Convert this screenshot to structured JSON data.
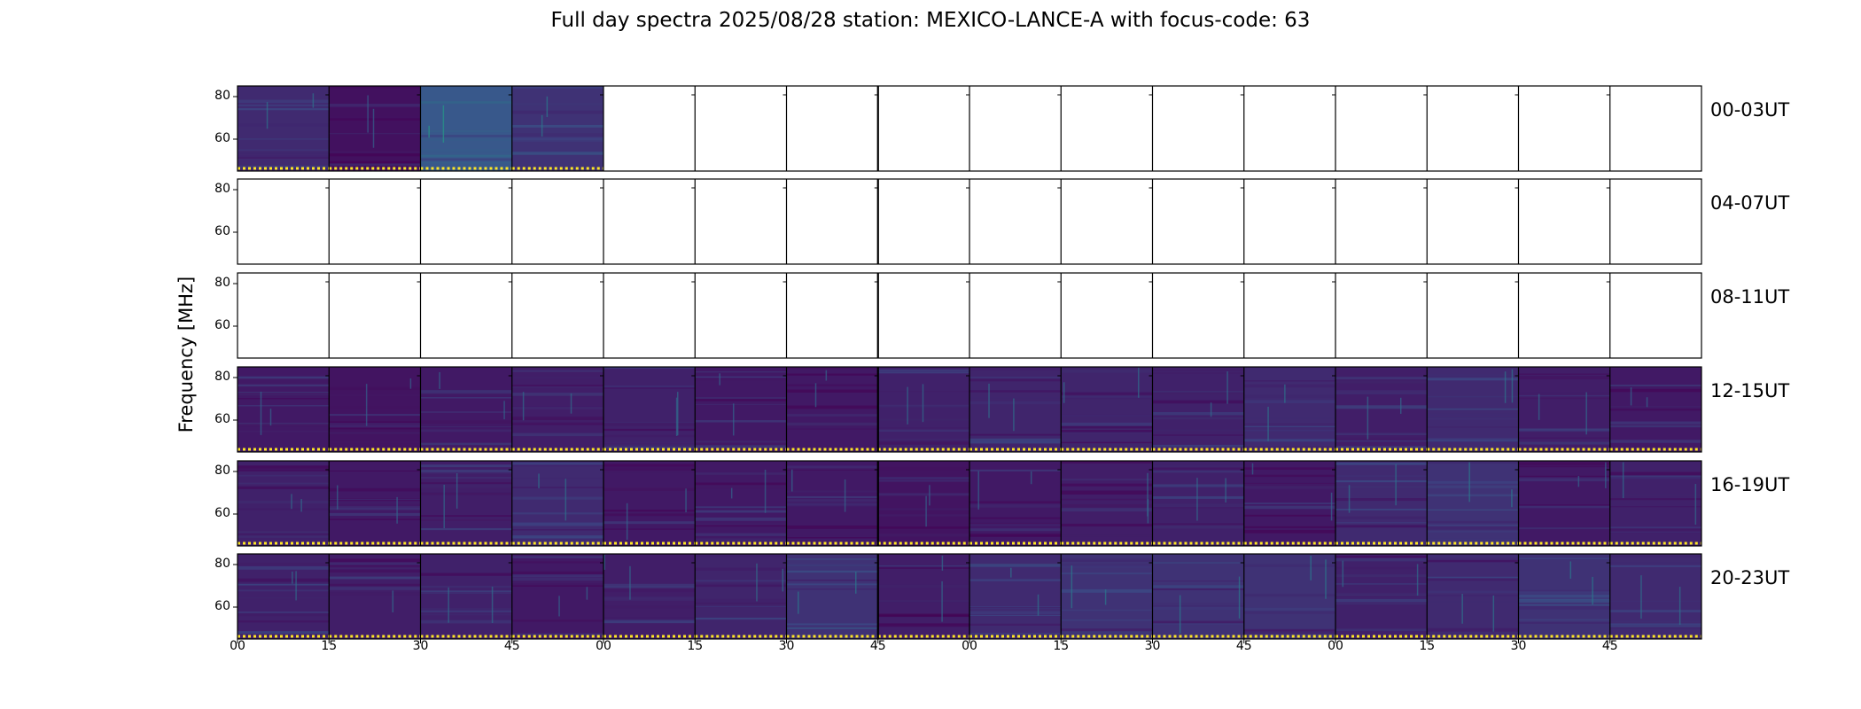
{
  "chart_data": {
    "type": "heatmap",
    "title": "Full day spectra 2025/08/28 station: MEXICO-LANCE-A with focus-code: 63",
    "ylabel": "Frequency [MHz]",
    "yticks": [
      "80",
      "60"
    ],
    "ylim": [
      45,
      85
    ],
    "xticks": [
      "00",
      "15",
      "30",
      "45",
      "00",
      "15",
      "30",
      "45",
      "00",
      "15",
      "30",
      "45",
      "00",
      "15",
      "30",
      "45"
    ],
    "colormap": "viridis",
    "colors": {
      "low": "#440154",
      "mid": "#3b528b",
      "teal": "#21918c",
      "high": "#fde725"
    },
    "rows": [
      {
        "label": "00-03UT",
        "panels_with_data": [
          1,
          1,
          1,
          1,
          0,
          0,
          0,
          0,
          0,
          0,
          0,
          0,
          0,
          0,
          0,
          0
        ],
        "panel_brightness": [
          0.25,
          0.1,
          0.55,
          0.3,
          0,
          0,
          0,
          0,
          0,
          0,
          0,
          0,
          0,
          0,
          0,
          0
        ]
      },
      {
        "label": "04-07UT",
        "panels_with_data": [
          0,
          0,
          0,
          0,
          0,
          0,
          0,
          0,
          0,
          0,
          0,
          0,
          0,
          0,
          0,
          0
        ],
        "panel_brightness": [
          0,
          0,
          0,
          0,
          0,
          0,
          0,
          0,
          0,
          0,
          0,
          0,
          0,
          0,
          0,
          0
        ]
      },
      {
        "label": "08-11UT",
        "panels_with_data": [
          0,
          0,
          0,
          0,
          0,
          0,
          0,
          0,
          0,
          0,
          0,
          0,
          0,
          0,
          0,
          0
        ],
        "panel_brightness": [
          0,
          0,
          0,
          0,
          0,
          0,
          0,
          0,
          0,
          0,
          0,
          0,
          0,
          0,
          0,
          0
        ]
      },
      {
        "label": "12-15UT",
        "panels_with_data": [
          1,
          1,
          1,
          1,
          1,
          1,
          1,
          1,
          1,
          1,
          1,
          1,
          1,
          1,
          1,
          1
        ],
        "panel_brightness": [
          0.15,
          0.12,
          0.15,
          0.18,
          0.2,
          0.15,
          0.15,
          0.2,
          0.22,
          0.22,
          0.2,
          0.25,
          0.18,
          0.25,
          0.18,
          0.15
        ]
      },
      {
        "label": "16-19UT",
        "panels_with_data": [
          1,
          1,
          1,
          1,
          1,
          1,
          1,
          1,
          1,
          1,
          1,
          1,
          1,
          1,
          1,
          1
        ],
        "panel_brightness": [
          0.2,
          0.15,
          0.18,
          0.25,
          0.15,
          0.15,
          0.15,
          0.12,
          0.15,
          0.18,
          0.2,
          0.15,
          0.25,
          0.3,
          0.15,
          0.2
        ]
      },
      {
        "label": "20-23UT",
        "panels_with_data": [
          1,
          1,
          1,
          1,
          1,
          1,
          1,
          1,
          1,
          1,
          1,
          1,
          1,
          1,
          1,
          1
        ],
        "panel_brightness": [
          0.2,
          0.18,
          0.2,
          0.15,
          0.18,
          0.22,
          0.3,
          0.18,
          0.25,
          0.3,
          0.3,
          0.3,
          0.2,
          0.25,
          0.3,
          0.25
        ]
      }
    ]
  }
}
